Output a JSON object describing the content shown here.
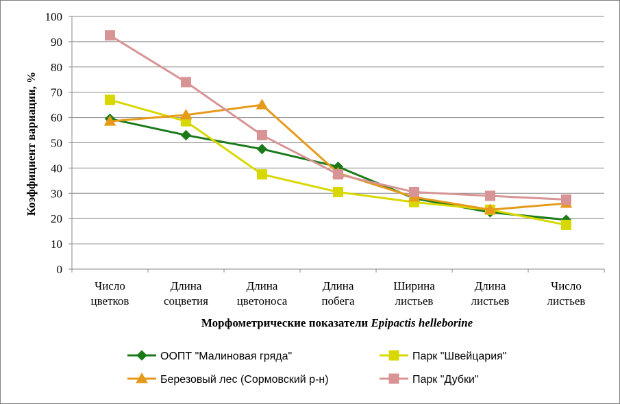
{
  "chart_data": {
    "type": "line",
    "categories": [
      [
        "Число",
        "цветков"
      ],
      [
        "Длина",
        "соцветия"
      ],
      [
        "Длина",
        "цветоноса"
      ],
      [
        "Длина",
        "побега"
      ],
      [
        "Ширина",
        "листьев"
      ],
      [
        "Длина",
        "листьев"
      ],
      [
        "Число",
        "листьев"
      ]
    ],
    "series": [
      {
        "name": "ООПТ \"Малиновая гряда\"",
        "color": "#1a7a1a",
        "marker": "diamond",
        "values": [
          59.5,
          53,
          47.5,
          40.5,
          28,
          22.5,
          19.5
        ]
      },
      {
        "name": "Парк \"Швейцария\"",
        "color": "#d8d800",
        "marker": "square",
        "values": [
          67,
          58.5,
          37.5,
          30.5,
          26.5,
          23.5,
          17.5
        ]
      },
      {
        "name": "Березовый лес (Сормовский р-н)",
        "color": "#e69a1a",
        "marker": "triangle",
        "values": [
          58.5,
          61,
          65,
          38,
          28.5,
          23.5,
          26
        ]
      },
      {
        "name": "Парк \"Дубки\"",
        "color": "#d89494",
        "marker": "square",
        "values": [
          92.5,
          74,
          53,
          37.5,
          30.5,
          29,
          27.5
        ]
      }
    ],
    "ylabel": "Коэффициент вариации, %",
    "xlabel_plain": "Морфометрические показатели ",
    "xlabel_italic": "Epipactis helleborine",
    "ylim": [
      0,
      100
    ],
    "yticks": [
      0,
      10,
      20,
      30,
      40,
      50,
      60,
      70,
      80,
      90,
      100
    ],
    "grid": true,
    "legend_position": "bottom"
  }
}
